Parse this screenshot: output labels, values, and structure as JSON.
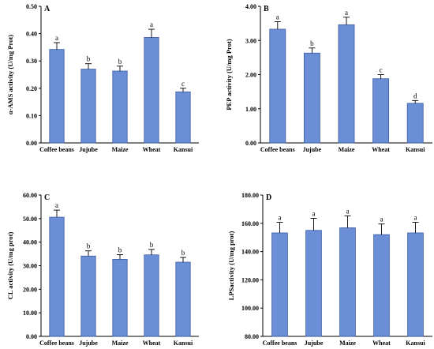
{
  "colors": {
    "bar_fill": "#6a8fd6",
    "bar_stroke": "#3a5aa0",
    "axis": "#000000"
  },
  "chart_data": [
    {
      "panel": "A",
      "type": "bar",
      "categories": [
        "Coffee beans",
        "Jujube",
        "Maize",
        "Wheat",
        "Kansui"
      ],
      "values": [
        0.342,
        0.27,
        0.263,
        0.386,
        0.187
      ],
      "errors": [
        0.025,
        0.02,
        0.018,
        0.03,
        0.013
      ],
      "significance": [
        "a",
        "b",
        "b",
        "a",
        "c"
      ],
      "ylabel": "α-AMS activity (U/mg Prot)",
      "ylim": [
        0,
        0.5
      ],
      "yticks": [
        "0.00",
        "0.10",
        "0.20",
        "0.30",
        "0.40",
        "0.50"
      ]
    },
    {
      "panel": "B",
      "type": "bar",
      "categories": [
        "Coffee beans",
        "Jujube",
        "Maize",
        "Wheat",
        "Kansui"
      ],
      "values": [
        3.33,
        2.63,
        3.46,
        1.88,
        1.16
      ],
      "errors": [
        0.22,
        0.15,
        0.22,
        0.12,
        0.08
      ],
      "significance": [
        "a",
        "b",
        "a",
        "c",
        "d"
      ],
      "ylabel": "PEP activity (U/mg Prot)",
      "ylim": [
        0,
        4
      ],
      "yticks": [
        "0.00",
        "1.00",
        "2.00",
        "3.00",
        "4.00"
      ]
    },
    {
      "panel": "C",
      "type": "bar",
      "categories": [
        "Coffee beans",
        "Jujube",
        "Maize",
        "Wheat",
        "Kansui"
      ],
      "values": [
        50.6,
        34.1,
        32.7,
        34.6,
        31.5
      ],
      "errors": [
        3.0,
        2.2,
        2.0,
        2.3,
        2.0
      ],
      "significance": [
        "a",
        "b",
        "b",
        "b",
        "b"
      ],
      "ylabel": "CL activity (U/mg prot)",
      "ylim": [
        0,
        60
      ],
      "yticks": [
        "0.00",
        "10.00",
        "20.00",
        "30.00",
        "40.00",
        "50.00",
        "60.00"
      ]
    },
    {
      "panel": "D",
      "type": "bar",
      "categories": [
        "Coffee beans",
        "Jujube",
        "Maize",
        "Wheat",
        "Kansui"
      ],
      "values": [
        153.2,
        155.0,
        156.8,
        152.0,
        153.2
      ],
      "errors": [
        7.5,
        8.5,
        8.5,
        7.5,
        7.5
      ],
      "significance": [
        "a",
        "a",
        "a",
        "a",
        "a"
      ],
      "ylabel": "LPSactivity (U/mg prot)",
      "ylim": [
        80,
        180
      ],
      "yticks": [
        "80.00",
        "100.00",
        "120.00",
        "140.00",
        "160.00",
        "180.00"
      ]
    }
  ]
}
